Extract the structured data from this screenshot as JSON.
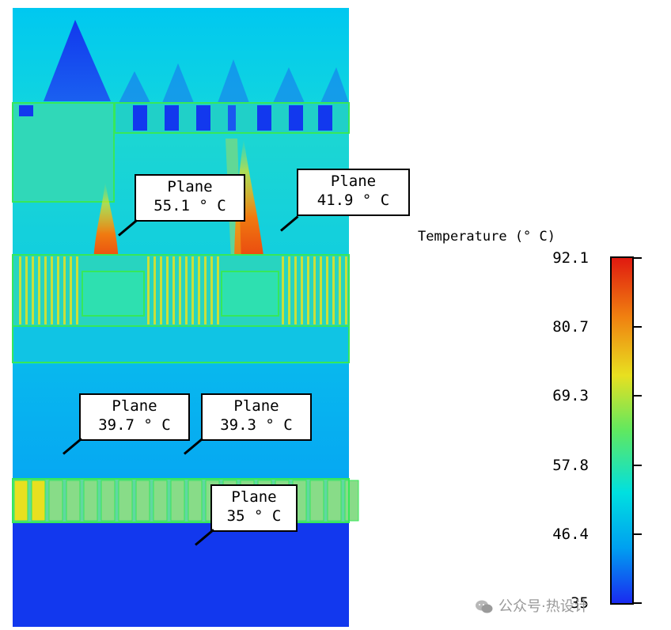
{
  "legend": {
    "title": "Temperature (° C)",
    "ticks": [
      "92.1",
      "80.7",
      "69.3",
      "57.8",
      "46.4",
      "35"
    ],
    "min": 35,
    "max": 92.1
  },
  "probes": [
    {
      "label": "Plane",
      "value": "55.1 ° C"
    },
    {
      "label": "Plane",
      "value": "41.9 ° C"
    },
    {
      "label": "Plane",
      "value": "39.7 ° C"
    },
    {
      "label": "Plane",
      "value": "39.3 ° C"
    },
    {
      "label": "Plane",
      "value": "35 ° C"
    }
  ],
  "colors": {
    "deep_blue": "#1238ee",
    "cyan": "#00c8f0",
    "aqua": "#18d8c8",
    "green_outline": "#36e85a",
    "yellow": "#e8e020",
    "orange": "#f07a10",
    "red": "#e01a10"
  },
  "watermark": {
    "text": "公众号·热设计",
    "icon": "wechat-icon"
  }
}
